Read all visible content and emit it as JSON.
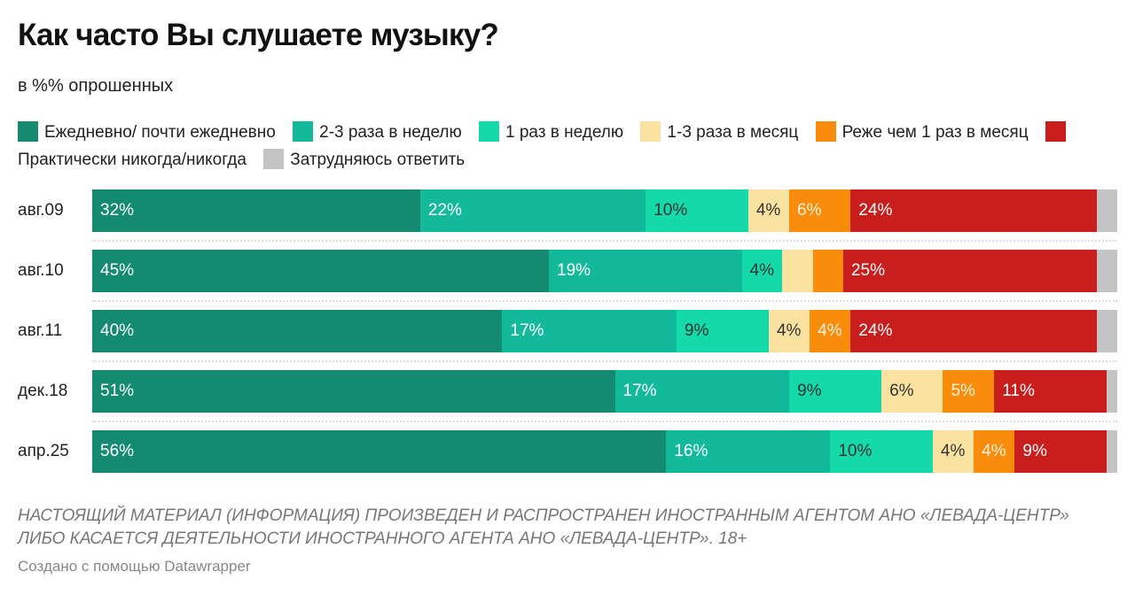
{
  "title": "Как часто Вы слушаете музыку?",
  "subtitle": "в %% опрошенных",
  "footer_note": "НАСТОЯЩИЙ МАТЕРИАЛ (ИНФОРМАЦИЯ) ПРОИЗВЕДЕН И РАСПРОСТРАНЕН ИНОСТРАННЫМ АГЕНТОМ АНО «ЛЕВАДА-ЦЕНТР» ЛИБО КАСАЕТСЯ ДЕЯТЕЛЬНОСТИ ИНОСТРАННОГО АГЕНТА АНО «ЛЕВАДА-ЦЕНТР». 18+",
  "credit": "Создано с помощью Datawrapper",
  "chart_data": {
    "type": "bar",
    "orientation": "horizontal",
    "stacked": true,
    "normalized_100": true,
    "legend_placement": "top",
    "grid": false,
    "categories": [
      "авг.09",
      "авг.10",
      "авг.11",
      "дек.18",
      "апр.25"
    ],
    "series": [
      {
        "name": "Ежедневно/ почти ежедневно",
        "color": "#148a71",
        "label_color": "#ffffff",
        "values": [
          32,
          45,
          40,
          51,
          56
        ],
        "labeled": [
          true,
          true,
          true,
          true,
          true
        ]
      },
      {
        "name": "2-3 раза в неделю",
        "color": "#12b99b",
        "label_color": "#ffffff",
        "values": [
          22,
          19,
          17,
          17,
          16
        ],
        "labeled": [
          true,
          true,
          true,
          true,
          true
        ]
      },
      {
        "name": "1 раз в неделю",
        "color": "#14d9a8",
        "label_color": "#333333",
        "values": [
          10,
          4,
          9,
          9,
          10
        ],
        "labeled": [
          true,
          true,
          true,
          true,
          true
        ]
      },
      {
        "name": "1-3 раза в месяц",
        "color": "#fce2a0",
        "label_color": "#333333",
        "values": [
          4,
          3,
          4,
          6,
          4
        ],
        "labeled": [
          true,
          false,
          true,
          true,
          true
        ]
      },
      {
        "name": "Реже чем 1 раз в месяц",
        "color": "#fa8c0c",
        "label_color": "#fff3dc",
        "values": [
          6,
          3,
          4,
          5,
          4
        ],
        "labeled": [
          true,
          false,
          true,
          true,
          true
        ]
      },
      {
        "name": "Практически никогда/никогда",
        "color": "#c81e1e",
        "label_color": "#ffffff",
        "values": [
          24,
          25,
          24,
          11,
          9
        ],
        "labeled": [
          true,
          true,
          true,
          true,
          true
        ]
      },
      {
        "name": "Затрудняюсь ответить",
        "color": "#c4c4c4",
        "label_color": "#333333",
        "values": [
          2,
          2,
          2,
          1,
          1
        ],
        "labeled": [
          false,
          false,
          false,
          false,
          false
        ]
      }
    ],
    "value_suffix": "%"
  }
}
